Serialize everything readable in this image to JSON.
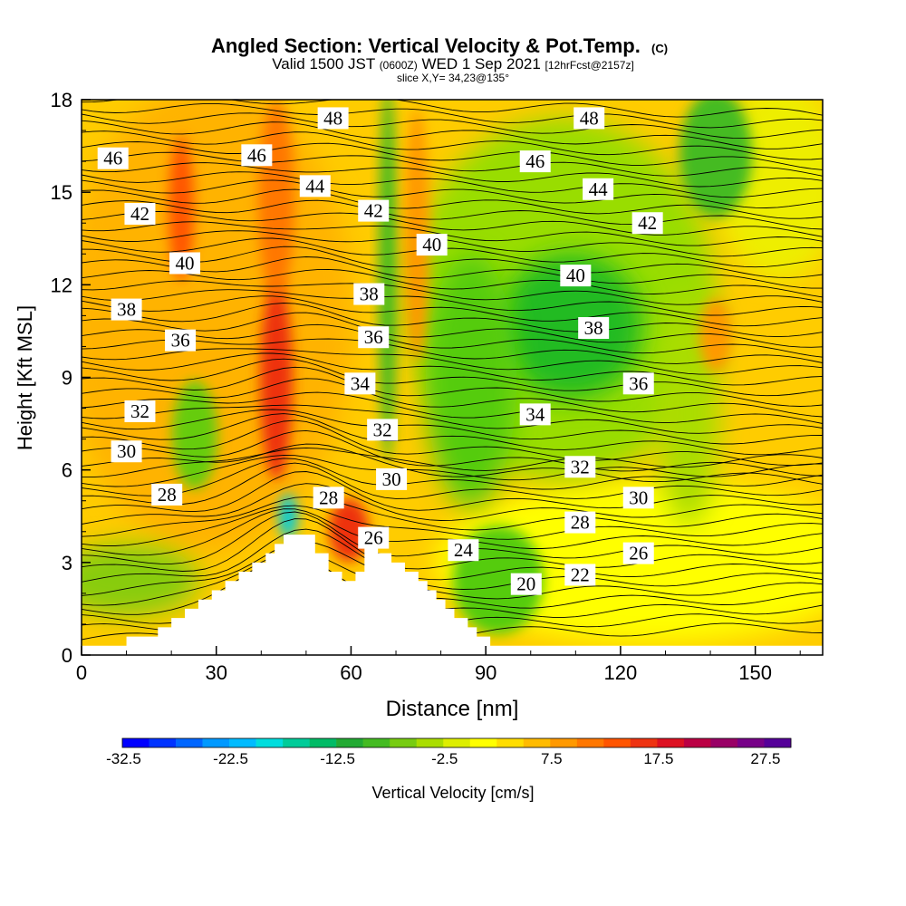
{
  "chart_data": {
    "type": "heatmap",
    "title": "Angled Section: Vertical Velocity & Pot.Temp.",
    "title_tag": "(C)",
    "subtitle_valid": "Valid 1500 JST",
    "subtitle_z": "(0600Z)",
    "subtitle_date": "WED 1 Sep 2021",
    "subtitle_fcst": "[12hrFcst@2157z]",
    "slice_label": "slice X,Y= 34,23@135°",
    "xlabel": "Distance [nm]",
    "ylabel": "Height [Kft MSL]",
    "xlim": [
      0,
      165
    ],
    "ylim": [
      0,
      18
    ],
    "x_ticks": [
      "0",
      "30",
      "60",
      "90",
      "120",
      "150"
    ],
    "y_ticks": [
      "0",
      "3",
      "6",
      "9",
      "12",
      "15",
      "18"
    ],
    "colorbar": {
      "label": "Vertical Velocity [cm/s]",
      "tick_labels": [
        "-32.5",
        "-22.5",
        "-12.5",
        "-2.5",
        "7.5",
        "17.5",
        "27.5"
      ],
      "colors": [
        "#0000ff",
        "#0033ff",
        "#0066ff",
        "#0099ff",
        "#00bbff",
        "#00dddd",
        "#00cc99",
        "#00bb66",
        "#22aa33",
        "#44bb22",
        "#77cc11",
        "#aadd00",
        "#ddee00",
        "#ffff00",
        "#ffdd00",
        "#ffbb00",
        "#ff9900",
        "#ff7700",
        "#ff5500",
        "#ee3311",
        "#dd1122",
        "#bb0044",
        "#990066",
        "#770088",
        "#550099"
      ]
    },
    "velocity_fields": [
      {
        "x": 22,
        "y": 14.5,
        "value": 17
      },
      {
        "x": 43,
        "y": 8.5,
        "value": 22
      },
      {
        "x": 61,
        "y": 4.2,
        "value": 22
      },
      {
        "x": 47,
        "y": 4.5,
        "value": -18
      },
      {
        "x": 110,
        "y": 10.5,
        "value": -10
      },
      {
        "x": 68,
        "y": 14,
        "value": -6
      },
      {
        "x": 88,
        "y": 9,
        "value": -8
      },
      {
        "x": 140,
        "y": 12,
        "value": 8
      }
    ],
    "isentrope_labels": [
      {
        "text": "46",
        "x": 7,
        "y": 16.1
      },
      {
        "text": "46",
        "x": 39,
        "y": 16.2
      },
      {
        "text": "48",
        "x": 56,
        "y": 17.4
      },
      {
        "text": "48",
        "x": 113,
        "y": 17.4
      },
      {
        "text": "44",
        "x": 52,
        "y": 15.2
      },
      {
        "text": "46",
        "x": 101,
        "y": 16.0
      },
      {
        "text": "44",
        "x": 115,
        "y": 15.1
      },
      {
        "text": "42",
        "x": 13,
        "y": 14.3
      },
      {
        "text": "42",
        "x": 65,
        "y": 14.4
      },
      {
        "text": "42",
        "x": 126,
        "y": 14.0
      },
      {
        "text": "40",
        "x": 23,
        "y": 12.7
      },
      {
        "text": "40",
        "x": 78,
        "y": 13.3
      },
      {
        "text": "40",
        "x": 110,
        "y": 12.3
      },
      {
        "text": "38",
        "x": 10,
        "y": 11.2
      },
      {
        "text": "38",
        "x": 64,
        "y": 11.7
      },
      {
        "text": "38",
        "x": 114,
        "y": 10.6
      },
      {
        "text": "36",
        "x": 22,
        "y": 10.2
      },
      {
        "text": "36",
        "x": 65,
        "y": 10.3
      },
      {
        "text": "36",
        "x": 124,
        "y": 8.8
      },
      {
        "text": "34",
        "x": 62,
        "y": 8.8
      },
      {
        "text": "34",
        "x": 101,
        "y": 7.8
      },
      {
        "text": "32",
        "x": 13,
        "y": 7.9
      },
      {
        "text": "32",
        "x": 67,
        "y": 7.3
      },
      {
        "text": "32",
        "x": 111,
        "y": 6.1
      },
      {
        "text": "30",
        "x": 10,
        "y": 6.6
      },
      {
        "text": "30",
        "x": 69,
        "y": 5.7
      },
      {
        "text": "30",
        "x": 124,
        "y": 5.1
      },
      {
        "text": "28",
        "x": 19,
        "y": 5.2
      },
      {
        "text": "28",
        "x": 55,
        "y": 5.1
      },
      {
        "text": "28",
        "x": 111,
        "y": 4.3
      },
      {
        "text": "26",
        "x": 65,
        "y": 3.8
      },
      {
        "text": "26",
        "x": 124,
        "y": 3.3
      },
      {
        "text": "24",
        "x": 85,
        "y": 3.4
      },
      {
        "text": "22",
        "x": 111,
        "y": 2.6
      },
      {
        "text": "20",
        "x": 99,
        "y": 2.3
      }
    ],
    "terrain_outline": [
      [
        0,
        0
      ],
      [
        0,
        0.3
      ],
      [
        10,
        0.3
      ],
      [
        10,
        0.6
      ],
      [
        17,
        0.6
      ],
      [
        17,
        0.9
      ],
      [
        20,
        0.9
      ],
      [
        20,
        1.2
      ],
      [
        23,
        1.2
      ],
      [
        23,
        1.5
      ],
      [
        26,
        1.5
      ],
      [
        26,
        1.8
      ],
      [
        29,
        1.8
      ],
      [
        29,
        2.1
      ],
      [
        32,
        2.1
      ],
      [
        32,
        2.4
      ],
      [
        35,
        2.4
      ],
      [
        35,
        2.7
      ],
      [
        38,
        2.7
      ],
      [
        38,
        3.0
      ],
      [
        41,
        3.0
      ],
      [
        41,
        3.3
      ],
      [
        43,
        3.3
      ],
      [
        43,
        3.6
      ],
      [
        45,
        3.6
      ],
      [
        45,
        3.9
      ],
      [
        52,
        3.9
      ],
      [
        52,
        3.3
      ],
      [
        55,
        3.3
      ],
      [
        55,
        2.7
      ],
      [
        58,
        2.7
      ],
      [
        58,
        2.4
      ],
      [
        61,
        2.4
      ],
      [
        61,
        2.7
      ],
      [
        63,
        2.7
      ],
      [
        63,
        3.6
      ],
      [
        66,
        3.6
      ],
      [
        66,
        3.3
      ],
      [
        69,
        3.3
      ],
      [
        69,
        3.0
      ],
      [
        72,
        3.0
      ],
      [
        72,
        2.7
      ],
      [
        75,
        2.7
      ],
      [
        75,
        2.4
      ],
      [
        77,
        2.4
      ],
      [
        77,
        2.1
      ],
      [
        79,
        2.1
      ],
      [
        79,
        1.8
      ],
      [
        81,
        1.8
      ],
      [
        81,
        1.5
      ],
      [
        83,
        1.5
      ],
      [
        83,
        1.2
      ],
      [
        86,
        1.2
      ],
      [
        86,
        0.9
      ],
      [
        88,
        0.9
      ],
      [
        88,
        0.6
      ],
      [
        91,
        0.6
      ],
      [
        91,
        0.3
      ],
      [
        165,
        0.3
      ],
      [
        165,
        0
      ]
    ]
  }
}
